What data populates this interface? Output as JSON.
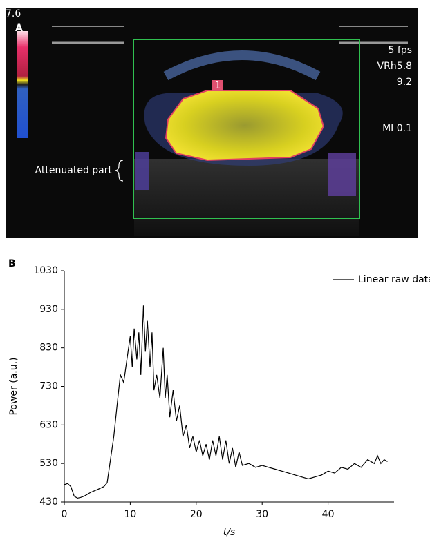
{
  "panel_a": {
    "label": "A",
    "scale_max": "7.6",
    "frame_rate": "5 fps",
    "setting_1": "VRh5.8",
    "setting_2": "9.2",
    "mechanical_index": "MI 0.1",
    "roi_label": "1",
    "annotation": "Attenuated part"
  },
  "chart_data": {
    "type": "line",
    "panel_label": "B",
    "y_label": "Power (a.u.)",
    "x_label": "t/s",
    "x": [
      0,
      0.5,
      1,
      1.5,
      2,
      2.5,
      3,
      3.5,
      4,
      5,
      6,
      6.5,
      7,
      7.5,
      8,
      8.5,
      9,
      9.5,
      10,
      10.3,
      10.6,
      11,
      11.3,
      11.6,
      12,
      12.3,
      12.6,
      13,
      13.3,
      13.6,
      14,
      14.5,
      15,
      15.3,
      15.6,
      16,
      16.5,
      17,
      17.5,
      18,
      18.5,
      19,
      19.5,
      20,
      20.5,
      21,
      21.5,
      22,
      22.5,
      23,
      23.5,
      24,
      24.5,
      25,
      25.5,
      26,
      26.5,
      27,
      28,
      29,
      30,
      31,
      32,
      33,
      34,
      35,
      36,
      37,
      38,
      39,
      40,
      41,
      42,
      43,
      44,
      45,
      46,
      47,
      47.5,
      48,
      48.5,
      49
    ],
    "series": [
      {
        "name": "Linear raw data",
        "color": "#000000",
        "values": [
          475,
          478,
          470,
          445,
          440,
          442,
          445,
          450,
          455,
          462,
          470,
          480,
          540,
          600,
          680,
          760,
          740,
          800,
          860,
          780,
          880,
          800,
          870,
          760,
          940,
          820,
          900,
          780,
          870,
          720,
          760,
          700,
          830,
          700,
          760,
          650,
          720,
          640,
          680,
          600,
          630,
          570,
          600,
          560,
          590,
          550,
          580,
          540,
          590,
          550,
          600,
          540,
          590,
          530,
          570,
          520,
          560,
          525,
          530,
          520,
          525,
          520,
          515,
          510,
          505,
          500,
          495,
          490,
          495,
          500,
          510,
          505,
          520,
          515,
          530,
          520,
          540,
          530,
          550,
          530,
          540,
          535
        ]
      }
    ],
    "xlim": [
      0,
      50
    ],
    "xticks": [
      0,
      10,
      20,
      30,
      40
    ],
    "ylim": [
      430,
      1030
    ],
    "yticks": [
      430,
      530,
      630,
      730,
      830,
      930,
      1030
    ],
    "legend": "top-right",
    "grid": false
  }
}
